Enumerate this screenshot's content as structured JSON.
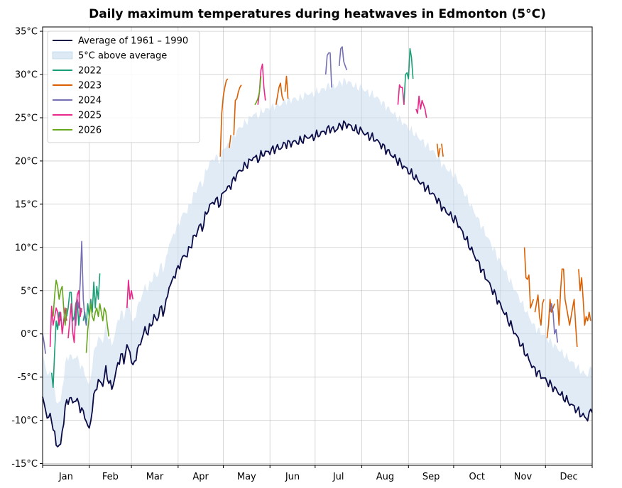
{
  "chart_data": {
    "type": "line",
    "title": "Daily maximum temperatures during heatwaves in Edmonton (5°C)",
    "xlabel": "",
    "ylabel": "",
    "ylim": [
      -15.2,
      35.5
    ],
    "xlim": [
      0,
      365
    ],
    "y_ticks": [
      35,
      30,
      25,
      20,
      15,
      10,
      5,
      0,
      -5,
      -10,
      -15
    ],
    "y_tick_labels": [
      "35°C",
      "30°C",
      "25°C",
      "20°C",
      "15°C",
      "10°C",
      "5°C",
      "0°C",
      "-5°C",
      "-10°C",
      "-15°C"
    ],
    "month_boundaries": [
      0,
      31,
      59,
      90,
      120,
      151,
      181,
      212,
      243,
      273,
      304,
      334,
      365
    ],
    "months": [
      "Jan",
      "Feb",
      "Mar",
      "Apr",
      "May",
      "Jun",
      "Jul",
      "Aug",
      "Sep",
      "Oct",
      "Nov",
      "Dec"
    ],
    "grid": true,
    "legend_position": "top-left",
    "band_offset": 5,
    "average": {
      "name": "Average of 1961 – 1990",
      "color": "#0a0a46",
      "x": [
        0,
        3,
        6,
        9,
        12,
        15,
        18,
        20,
        22,
        25,
        28,
        31,
        33,
        35,
        37,
        40,
        42,
        44,
        46,
        48,
        50,
        52,
        54,
        56,
        58,
        60,
        62,
        64,
        66,
        68,
        70,
        72,
        74,
        76,
        78,
        80,
        82,
        84,
        86,
        88,
        90,
        92,
        94,
        96,
        98,
        100,
        102,
        104,
        106,
        108,
        110,
        112,
        115,
        118,
        120,
        123,
        126,
        129,
        132,
        135,
        138,
        140,
        143,
        146,
        149,
        152,
        155,
        158,
        161,
        164,
        167,
        170,
        173,
        176,
        179,
        182,
        185,
        188,
        191,
        194,
        197,
        200,
        203,
        206,
        209,
        212,
        215,
        218,
        221,
        224,
        227,
        230,
        233,
        236,
        239,
        242,
        245,
        248,
        251,
        254,
        257,
        260,
        263,
        266,
        269,
        272,
        275,
        278,
        281,
        284,
        287,
        290,
        293,
        296,
        299,
        302,
        305,
        308,
        311,
        314,
        317,
        320,
        323,
        326,
        329,
        332,
        335,
        338,
        341,
        344,
        347,
        350,
        353,
        356,
        359,
        362,
        365
      ],
      "y": [
        -7.5,
        -9.5,
        -9.8,
        -12.8,
        -12.9,
        -8.5,
        -7.3,
        -8,
        -7.5,
        -8.5,
        -9.5,
        -11.2,
        -8.5,
        -6.5,
        -5.5,
        -5.8,
        -4.2,
        -5.5,
        -6.3,
        -5,
        -3.5,
        -2.5,
        -3,
        -1.5,
        -2,
        -4,
        -2.5,
        -1.5,
        -0.5,
        0.5,
        0.2,
        1,
        2,
        1.5,
        3,
        2.5,
        3.5,
        5.5,
        6,
        7,
        7.5,
        8.5,
        9,
        9.2,
        10,
        11,
        11.5,
        12.5,
        12.2,
        13.5,
        14.5,
        15,
        15.5,
        15,
        16.5,
        16.8,
        17.5,
        18.5,
        19,
        19.5,
        20,
        20.5,
        20.2,
        20.8,
        21,
        21.2,
        21.5,
        21.5,
        22,
        22,
        22.2,
        22.2,
        22.5,
        22.8,
        22.7,
        23,
        23.2,
        23.5,
        23.8,
        23.5,
        24,
        24.2,
        24.2,
        23.8,
        23.5,
        23.5,
        23,
        22.8,
        22.5,
        22,
        21.5,
        21,
        20.5,
        20,
        19.5,
        19,
        18.5,
        18,
        17.5,
        17,
        16.5,
        16,
        15.3,
        14.5,
        14,
        13.5,
        13,
        12,
        11,
        10,
        9,
        8,
        7,
        6,
        5,
        4,
        3,
        2,
        1,
        0,
        -1,
        -2,
        -3,
        -4,
        -4.5,
        -5,
        -5.5,
        -6,
        -6.5,
        -7,
        -7.5,
        -8,
        -8.5,
        -9,
        -9.5,
        -9.8,
        -8.5
      ],
      "noise": 0.6
    },
    "band": {
      "name": "5°C above average",
      "color": "#c6dbef"
    },
    "series": [
      {
        "name": "2022",
        "color": "#1b9e77",
        "segments": [
          {
            "x": [
              6,
              7,
              8,
              9,
              10,
              11,
              12
            ],
            "y": [
              -4.5,
              -6.2,
              -2,
              1.5,
              0.5,
              2.5,
              1.5
            ]
          },
          {
            "x": [
              16,
              17,
              18,
              19,
              20,
              21,
              22,
              23,
              24,
              25,
              26
            ],
            "y": [
              2,
              3,
              4.8,
              4.8,
              1.5,
              2,
              3.5,
              4,
              1,
              3,
              2.5
            ]
          },
          {
            "x": [
              27,
              28,
              29,
              30,
              31,
              32,
              33,
              34,
              35,
              36,
              37,
              38
            ],
            "y": [
              1.5,
              2.5,
              1,
              3.5,
              2,
              4,
              2.5,
              6,
              3,
              5.5,
              4,
              7
            ]
          },
          {
            "x": [
              240,
              241,
              242,
              243,
              244,
              245,
              246
            ],
            "y": [
              26.5,
              30,
              30.2,
              29.5,
              33,
              32,
              29.5
            ]
          }
        ]
      },
      {
        "name": "2023",
        "color": "#d95f02",
        "segments": [
          {
            "x": [
              118,
              119,
              120,
              121,
              122,
              123
            ],
            "y": [
              20.5,
              25.5,
              27.5,
              28.5,
              29.3,
              29.5
            ]
          },
          {
            "x": [
              124,
              125
            ],
            "y": [
              21.5,
              23
            ]
          },
          {
            "x": [
              127,
              128,
              129,
              130,
              131,
              132
            ],
            "y": [
              23,
              27,
              27.2,
              28,
              28.5,
              28.8
            ]
          },
          {
            "x": [
              155,
              156,
              157,
              158,
              159,
              160
            ],
            "y": [
              26.5,
              27.5,
              28.5,
              29,
              27.5,
              27
            ]
          },
          {
            "x": [
              161,
              162,
              163
            ],
            "y": [
              28,
              29.8,
              27.2
            ]
          },
          {
            "x": [
              262,
              263,
              264
            ],
            "y": [
              22,
              20.5,
              21.5
            ]
          },
          {
            "x": [
              265,
              266
            ],
            "y": [
              22,
              20.5
            ]
          },
          {
            "x": [
              320,
              321,
              322,
              323,
              324,
              325,
              326
            ],
            "y": [
              10,
              6.5,
              6.3,
              6.8,
              3,
              3.5,
              4
            ]
          },
          {
            "x": [
              327,
              328,
              329,
              330,
              331,
              332,
              333
            ],
            "y": [
              2.5,
              3.5,
              4.5,
              2,
              1,
              3.5,
              4
            ]
          },
          {
            "x": [
              335,
              336,
              337,
              338,
              339,
              340
            ],
            "y": [
              -0.5,
              1,
              4,
              2.5,
              3,
              3.5
            ]
          },
          {
            "x": [
              342,
              343,
              344,
              345,
              346,
              347,
              348,
              349,
              350,
              351,
              352,
              353,
              354,
              355
            ],
            "y": [
              4,
              1,
              5,
              7.5,
              7.5,
              4,
              3,
              2,
              1,
              2,
              3,
              4,
              1,
              -1.5
            ]
          },
          {
            "x": [
              356,
              357,
              358,
              359,
              360,
              361,
              362,
              363,
              364
            ],
            "y": [
              7.5,
              5,
              6.5,
              4,
              1,
              2,
              1.5,
              2.5,
              1.5
            ]
          }
        ]
      },
      {
        "name": "2024",
        "color": "#7570b3",
        "segments": [
          {
            "x": [
              0,
              1,
              2
            ],
            "y": [
              0,
              -1,
              -2.3
            ]
          },
          {
            "x": [
              21,
              22,
              23,
              24,
              25,
              26,
              27,
              28,
              29
            ],
            "y": [
              2,
              1,
              4,
              3,
              6,
              10.7,
              4,
              2,
              1
            ]
          },
          {
            "x": [
              188,
              189,
              190,
              191,
              192
            ],
            "y": [
              30,
              32.2,
              32.5,
              32.5,
              28.5
            ]
          },
          {
            "x": [
              197,
              198,
              199,
              200,
              201,
              202
            ],
            "y": [
              31,
              33,
              33.2,
              31.5,
              31,
              30.5
            ]
          },
          {
            "x": [
              337,
              338,
              339,
              340,
              341,
              342
            ],
            "y": [
              2.5,
              3.5,
              2.5,
              0,
              0.5,
              -1
            ]
          }
        ]
      },
      {
        "name": "2025",
        "color": "#e7298a",
        "segments": [
          {
            "x": [
              5,
              6,
              7,
              8,
              9,
              10,
              11,
              12,
              13,
              14,
              15,
              16
            ],
            "y": [
              -1.5,
              3.2,
              1,
              2,
              3,
              2.5,
              1,
              2.5,
              0,
              1.5,
              3,
              1.5
            ]
          },
          {
            "x": [
              17,
              18,
              19,
              20,
              21,
              22,
              23,
              24,
              25,
              26
            ],
            "y": [
              -0.5,
              1.5,
              3.5,
              0.2,
              -1,
              2.5,
              4.5,
              5,
              2,
              3
            ]
          },
          {
            "x": [
              56,
              57,
              58,
              59,
              60
            ],
            "y": [
              3,
              6.2,
              4,
              5,
              4
            ]
          },
          {
            "x": [
              143,
              144,
              145,
              146,
              147,
              148
            ],
            "y": [
              26.5,
              28,
              30.5,
              31.2,
              28.5,
              27
            ]
          },
          {
            "x": [
              236,
              237,
              238,
              239,
              240
            ],
            "y": [
              26.5,
              28.8,
              28.5,
              28.5,
              26.5
            ]
          },
          {
            "x": [
              248,
              249,
              250,
              251,
              252,
              253,
              254,
              255
            ],
            "y": [
              26,
              25.5,
              27.5,
              26,
              27,
              26.5,
              26,
              25
            ]
          }
        ]
      },
      {
        "name": "2026",
        "color": "#66a61e",
        "segments": [
          {
            "x": [
              7,
              8,
              9,
              10,
              11,
              12,
              13,
              14,
              15,
              16
            ],
            "y": [
              2,
              4.5,
              6.2,
              5.5,
              4,
              5,
              5.5,
              3,
              1,
              3
            ]
          },
          {
            "x": [
              29,
              30,
              31,
              32,
              33,
              34,
              35,
              36,
              37,
              38,
              39,
              40,
              41,
              42,
              43,
              44
            ],
            "y": [
              -2.2,
              0.5,
              2,
              3.5,
              2,
              1.5,
              2.5,
              3,
              2,
              3.5,
              2.5,
              1.5,
              3,
              2.5,
              1,
              -0.3
            ]
          },
          {
            "x": [
              141,
              142,
              143,
              144,
              145
            ],
            "y": [
              26.5,
              26.8,
              27.2,
              28,
              29.8
            ]
          }
        ]
      }
    ]
  }
}
